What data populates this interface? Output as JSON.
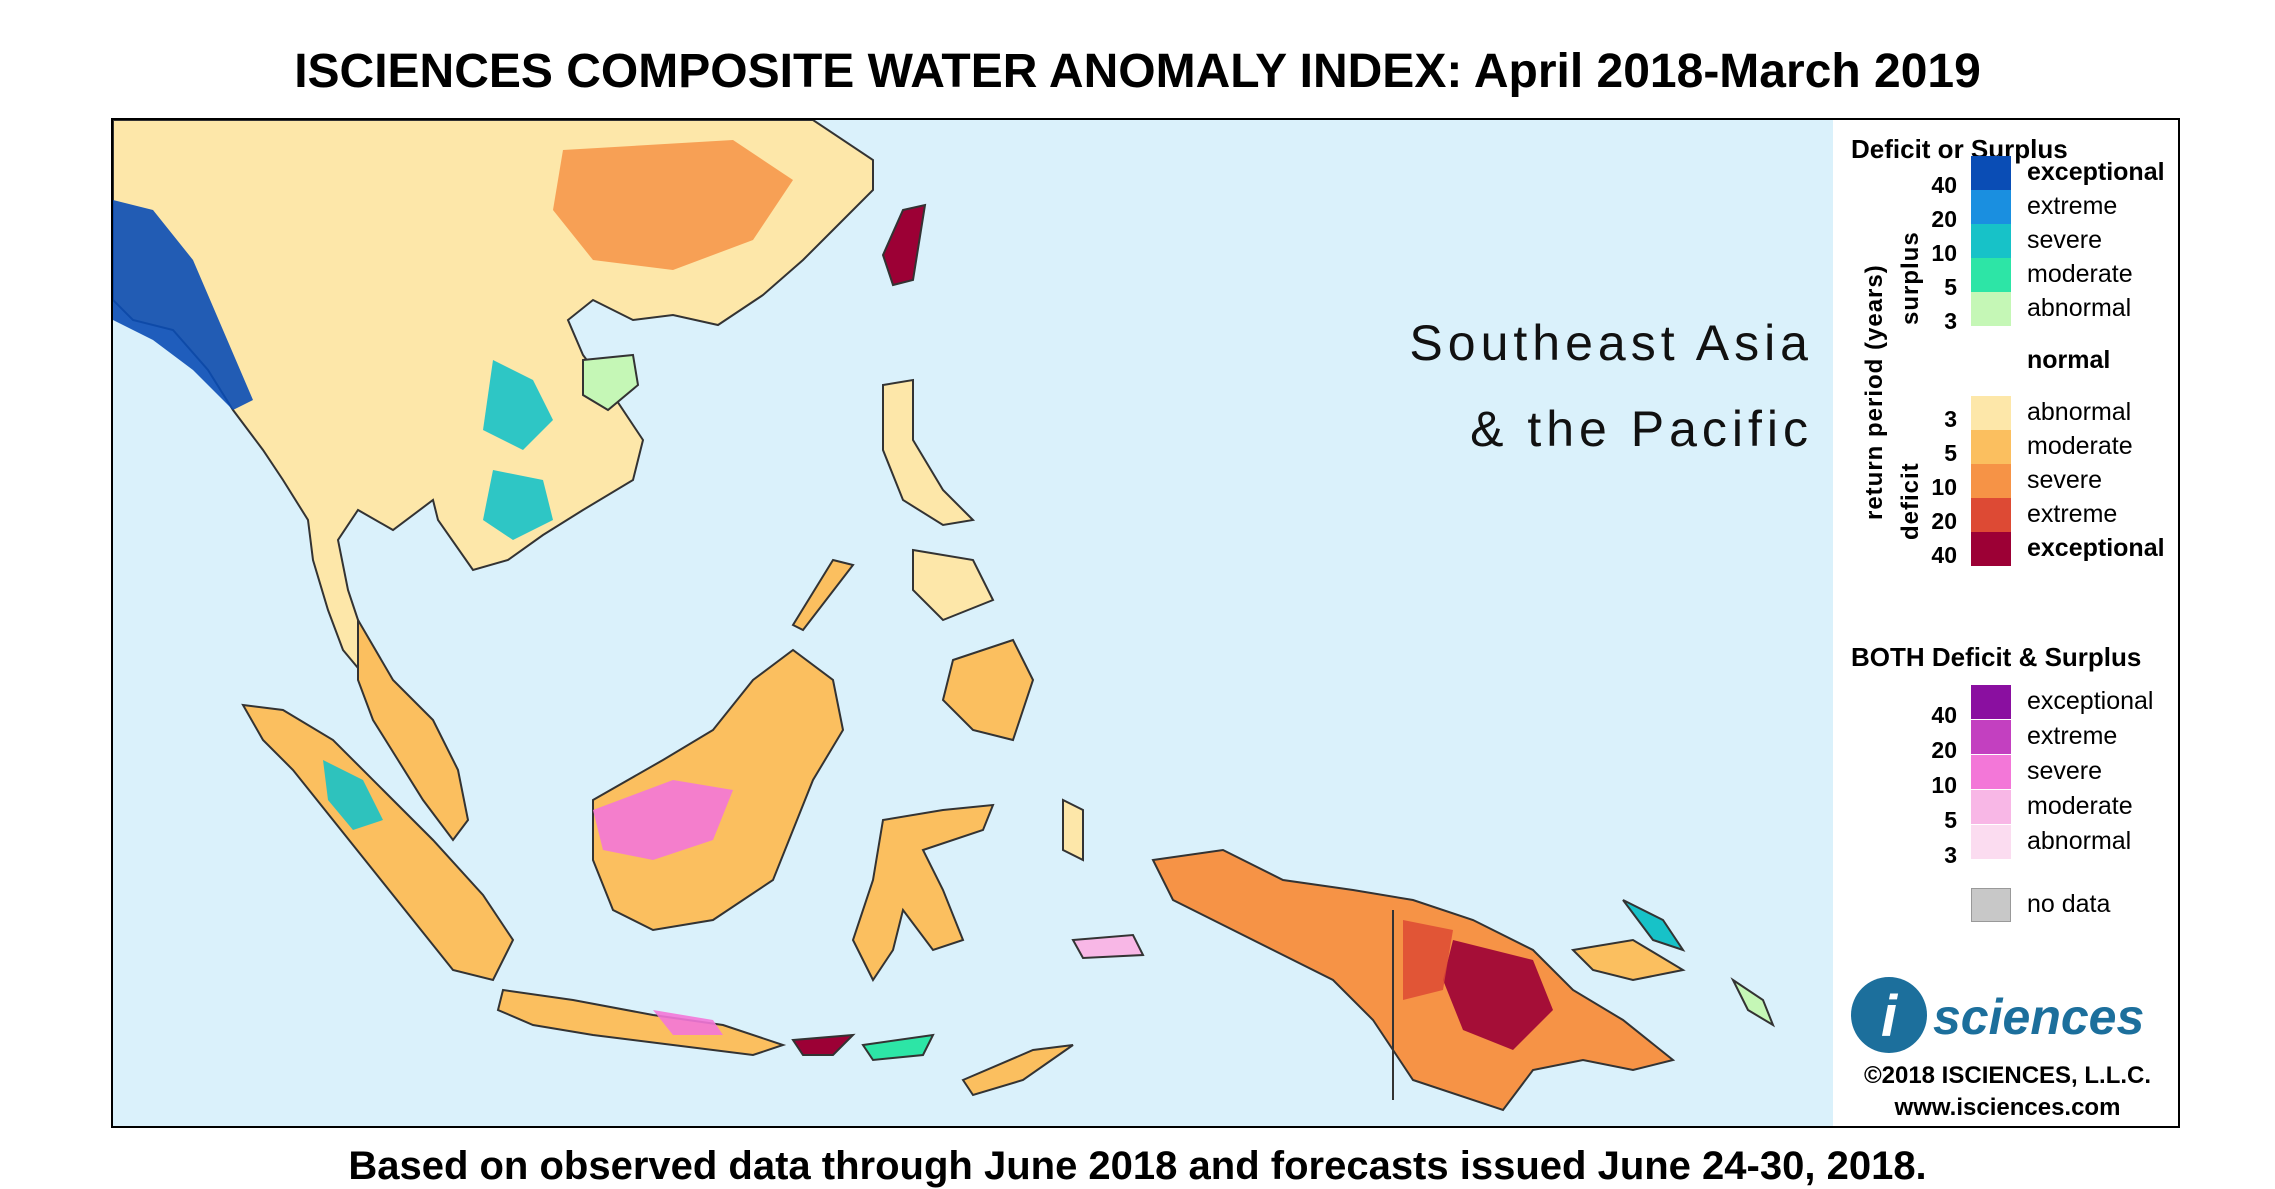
{
  "title": "ISCIENCES COMPOSITE WATER ANOMALY INDEX: April 2018-March 2019",
  "footer": "Based on observed data through June 2018 and forecasts issued June 24-30, 2018.",
  "map": {
    "region_label": "Southeast Asia\n& the Pacific",
    "ocean_color": "#daf1fb",
    "land_outline_color": "#333333"
  },
  "legend": {
    "section1_title": "Deficit or Surplus",
    "axis_label": "return period (years)",
    "surplus_label": "surplus",
    "deficit_label": "deficit",
    "surplus_items": [
      {
        "label": "exceptional",
        "color": "#0a4db5",
        "bold": true
      },
      {
        "label": "extreme",
        "color": "#1a8fe0",
        "bold": false
      },
      {
        "label": "severe",
        "color": "#17c2c8",
        "bold": false
      },
      {
        "label": "moderate",
        "color": "#2de5a6",
        "bold": false
      },
      {
        "label": "abnormal",
        "color": "#c5f7b6",
        "bold": false
      }
    ],
    "normal_item": {
      "label": "normal",
      "color": "#ffffff",
      "bold": true
    },
    "deficit_items": [
      {
        "label": "abnormal",
        "color": "#fde7a9",
        "bold": false
      },
      {
        "label": "moderate",
        "color": "#fbbf5f",
        "bold": false
      },
      {
        "label": "severe",
        "color": "#f69346",
        "bold": false
      },
      {
        "label": "extreme",
        "color": "#dd4a34",
        "bold": false
      },
      {
        "label": "exceptional",
        "color": "#9c0035",
        "bold": true
      }
    ],
    "surplus_ticks": [
      "40",
      "20",
      "10",
      "5",
      "3"
    ],
    "deficit_ticks": [
      "3",
      "5",
      "10",
      "20",
      "40"
    ],
    "section2_title": "BOTH Deficit & Surplus",
    "both_items": [
      {
        "label": "exceptional",
        "color": "#8a0fa0"
      },
      {
        "label": "extreme",
        "color": "#c340c0"
      },
      {
        "label": "severe",
        "color": "#f377d8"
      },
      {
        "label": "moderate",
        "color": "#f8b7e6"
      },
      {
        "label": "abnormal",
        "color": "#fbdcf0"
      }
    ],
    "both_ticks": [
      "40",
      "20",
      "10",
      "5",
      "3"
    ],
    "nodata_item": {
      "label": "no data",
      "color": "#c8c8c8"
    },
    "logo_text": "sciences",
    "logo_i": "i",
    "copyright": "©2018 ISCIENCES, L.L.C.",
    "website": "www.isciences.com"
  }
}
